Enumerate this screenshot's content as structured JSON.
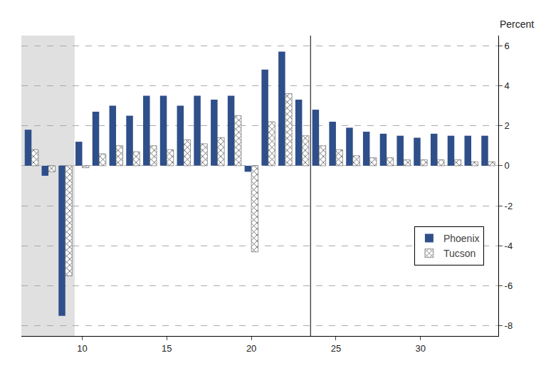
{
  "chart_data": {
    "type": "bar",
    "ylabel": "Percent",
    "x": [
      7,
      8,
      9,
      10,
      11,
      12,
      13,
      14,
      15,
      16,
      17,
      18,
      19,
      20,
      21,
      22,
      23,
      24,
      25,
      26,
      27,
      28,
      29,
      30,
      31,
      32,
      33,
      34
    ],
    "series": [
      {
        "name": "Phoenix",
        "color": "#2E4F8A",
        "values": [
          1.8,
          -0.5,
          -7.5,
          1.2,
          2.7,
          3.0,
          2.5,
          3.5,
          3.5,
          3.0,
          3.5,
          3.3,
          3.5,
          -0.3,
          4.8,
          5.7,
          3.3,
          2.8,
          2.2,
          1.9,
          1.7,
          1.6,
          1.5,
          1.4,
          1.6,
          1.5,
          1.5,
          1.5
        ]
      },
      {
        "name": "Tucson",
        "color": "#FFFFFF",
        "values": [
          0.8,
          -0.3,
          -5.5,
          -0.1,
          0.6,
          1.0,
          0.7,
          1.0,
          0.8,
          1.3,
          1.1,
          1.4,
          2.5,
          -4.3,
          2.2,
          3.6,
          1.5,
          1.0,
          0.8,
          0.5,
          0.4,
          0.4,
          0.3,
          0.3,
          0.3,
          0.3,
          0.2,
          0.2
        ]
      }
    ],
    "xlim": [
      6.4,
      34.6
    ],
    "xticks": [
      10,
      15,
      20,
      25,
      30
    ],
    "ylim": [
      -8.5,
      6.5
    ],
    "yticks": [
      -8,
      -6,
      -4,
      -2,
      0,
      2,
      4,
      6
    ],
    "shaded_x": [
      6.4,
      9.55
    ],
    "vline_x": 23.5,
    "shade_color": "#E0E0E0",
    "grid": true,
    "legend": "right"
  }
}
